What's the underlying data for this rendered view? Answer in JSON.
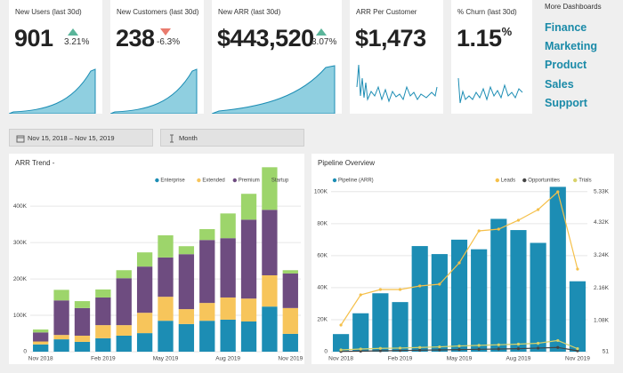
{
  "kpis": [
    {
      "title": "New Users (last 30d)",
      "value": "901",
      "change": "3.21%",
      "trend": "up"
    },
    {
      "title": "New Customers (last 30d)",
      "value": "238",
      "change": "-6.3%",
      "trend": "down"
    },
    {
      "title": "New ARR (last 30d)",
      "value": "$443,520",
      "change": "3.07%",
      "trend": "up"
    },
    {
      "title": "ARR Per Customer",
      "value": "$1,473"
    },
    {
      "title": "% Churn (last 30d)",
      "value": "1.15",
      "unit": "%"
    }
  ],
  "more_dashboards": {
    "title": "More Dashboards",
    "links": [
      "Finance",
      "Marketing",
      "Product",
      "Sales",
      "Support"
    ]
  },
  "filters": {
    "date_range": "Nov 15, 2018  –  Nov 15, 2019",
    "granularity": "Month"
  },
  "chart_data": [
    {
      "type": "stacked_bar",
      "title": "ARR Trend -",
      "categories": [
        "Nov 2018",
        null,
        null,
        "Feb 2019",
        null,
        null,
        "May 2019",
        null,
        null,
        "Aug 2019",
        null,
        null,
        "Nov 2019"
      ],
      "series": [
        {
          "name": "Enterprise",
          "color": "#1c8db4",
          "values": [
            20000,
            34000,
            27000,
            37000,
            44000,
            51000,
            85000,
            76000,
            85000,
            88000,
            83000,
            124000,
            49000
          ]
        },
        {
          "name": "Extended",
          "color": "#f7c55b",
          "values": [
            8000,
            12000,
            17000,
            36000,
            29000,
            56000,
            66000,
            41000,
            49000,
            61000,
            63000,
            86000,
            71000
          ]
        },
        {
          "name": "Premium",
          "color": "#6e4c80",
          "values": [
            25000,
            95000,
            76000,
            76000,
            129000,
            127000,
            108000,
            151000,
            173000,
            163000,
            217000,
            180000,
            95000
          ]
        },
        {
          "name": "Startup",
          "color": "#9dd56b",
          "values": [
            8000,
            29000,
            19000,
            22000,
            22000,
            39000,
            61000,
            22000,
            30000,
            68000,
            71000,
            117000,
            9000
          ]
        }
      ],
      "ylim": [
        0,
        520000
      ],
      "yticks": [
        0,
        {
          "value": 100000,
          "label": "100K"
        },
        {
          "value": 200000,
          "label": "200K"
        },
        {
          "value": 300000,
          "label": "300K"
        },
        {
          "value": 400000,
          "label": "400K"
        }
      ],
      "legend": "top-right"
    },
    {
      "type": "bar_line",
      "title": "Pipeline Overview",
      "categories": [
        "Nov 2018",
        null,
        null,
        "Feb 2019",
        null,
        null,
        "May 2019",
        null,
        null,
        "Aug 2019",
        null,
        null,
        "Nov 2019"
      ],
      "series": [
        {
          "name": "Pipeline (ARR)",
          "color": "#1c8db4",
          "axis": "y",
          "values": [
            11000,
            24000,
            36500,
            31000,
            66000,
            61000,
            70000,
            64000,
            83000,
            76000,
            68000,
            103000,
            44000
          ]
        },
        {
          "name": "Leads",
          "color": "#f5c04a",
          "axis": "y2",
          "values": [
            931,
            1928,
            2104,
            2104,
            2221,
            2280,
            2984,
            4040,
            4098,
            4392,
            4744,
            5330,
            2779
          ]
        },
        {
          "name": "Opportunities",
          "color": "#444444",
          "axis": "y2",
          "values": [
            60,
            70,
            80,
            90,
            100,
            110,
            120,
            130,
            140,
            150,
            170,
            190,
            80
          ]
        },
        {
          "name": "Trials",
          "color": "#d8d26a",
          "axis": "y2",
          "values": [
            110,
            140,
            160,
            170,
            190,
            210,
            240,
            260,
            280,
            300,
            330,
            420,
            150
          ]
        }
      ],
      "ylim": [
        0,
        106000
      ],
      "yticks": [
        0,
        {
          "value": 20000,
          "label": "20K"
        },
        {
          "value": 40000,
          "label": "40K"
        },
        {
          "value": 60000,
          "label": "60K"
        },
        {
          "value": 80000,
          "label": "80K"
        },
        {
          "value": 100000,
          "label": "100K"
        }
      ],
      "y2lim": [
        51,
        5330
      ],
      "y2ticks": [
        51,
        {
          "value": 1080,
          "label": "1.08K"
        },
        {
          "value": 2160,
          "label": "2.16K"
        },
        {
          "value": 3240,
          "label": "3.24K"
        },
        {
          "value": 4320,
          "label": "4.32K"
        },
        {
          "value": 5330,
          "label": "5.33K"
        }
      ]
    }
  ]
}
